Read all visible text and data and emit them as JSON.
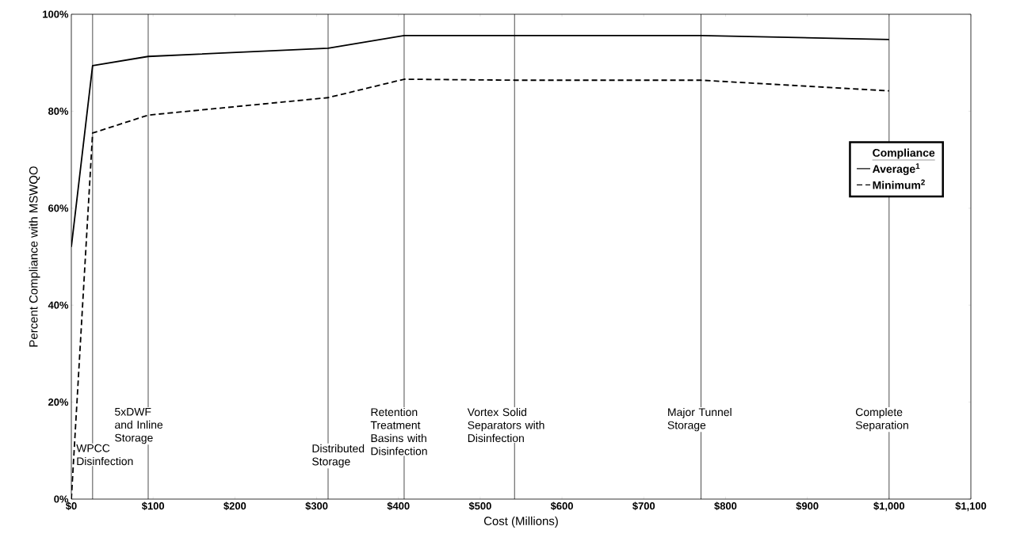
{
  "chart_data": {
    "type": "line",
    "xlabel": "Cost (Millions)",
    "ylabel": "Percent Compliance with MSWQO",
    "legend_title": "Compliance",
    "legend": "right",
    "grid": false,
    "marker": "none",
    "xlim": [
      0,
      1100
    ],
    "ylim": [
      0,
      100
    ],
    "xticks": [
      {
        "value": 0,
        "label": "$0"
      },
      {
        "value": 100,
        "label": "$100"
      },
      {
        "value": 200,
        "label": "$200"
      },
      {
        "value": 300,
        "label": "$300"
      },
      {
        "value": 400,
        "label": "$400"
      },
      {
        "value": 500,
        "label": "$500"
      },
      {
        "value": 600,
        "label": "$600"
      },
      {
        "value": 700,
        "label": "$700"
      },
      {
        "value": 800,
        "label": "$800"
      },
      {
        "value": 900,
        "label": "$900"
      },
      {
        "value": 1000,
        "label": "$1,000"
      },
      {
        "value": 1100,
        "label": "$1,100"
      }
    ],
    "yticks": [
      {
        "value": 0,
        "label": "0%"
      },
      {
        "value": 20,
        "label": "20%"
      },
      {
        "value": 40,
        "label": "40%"
      },
      {
        "value": 60,
        "label": "60%"
      },
      {
        "value": 80,
        "label": "80%"
      },
      {
        "value": 100,
        "label": "100%"
      }
    ],
    "series": [
      {
        "name": "Average$^{1}$",
        "color": "#000000",
        "line_style": "solid",
        "x": [
          0,
          26,
          94,
          314,
          407,
          542,
          770,
          1000
        ],
        "values": [
          52,
          89.4,
          91.3,
          93,
          95.6,
          95.6,
          95.6,
          94.8
        ]
      },
      {
        "name": "Minimum$^{2}$",
        "color": "#000000",
        "line_style": "dashed",
        "x": [
          0,
          26,
          94,
          314,
          407,
          542,
          770,
          1000
        ],
        "values": [
          0,
          75.5,
          79.2,
          82.8,
          86.6,
          86.4,
          86.4,
          84.2
        ]
      }
    ],
    "ref_lines": [
      {
        "axis": "x",
        "value": 26,
        "label": "WPCC Disinfection"
      },
      {
        "axis": "x",
        "value": 94,
        "label": "5xDWF and Inline Storage"
      },
      {
        "axis": "x",
        "value": 314,
        "label": "Distributed Storage"
      },
      {
        "axis": "x",
        "value": 407,
        "label": "Retention Treatment Basins with Disinfection"
      },
      {
        "axis": "x",
        "value": 542,
        "label": "Vortex Solid Separators with Disinfection"
      },
      {
        "axis": "x",
        "value": 770,
        "label": "Major Tunnel Storage"
      },
      {
        "axis": "x",
        "value": 1000,
        "label": "Complete Separation"
      }
    ]
  }
}
